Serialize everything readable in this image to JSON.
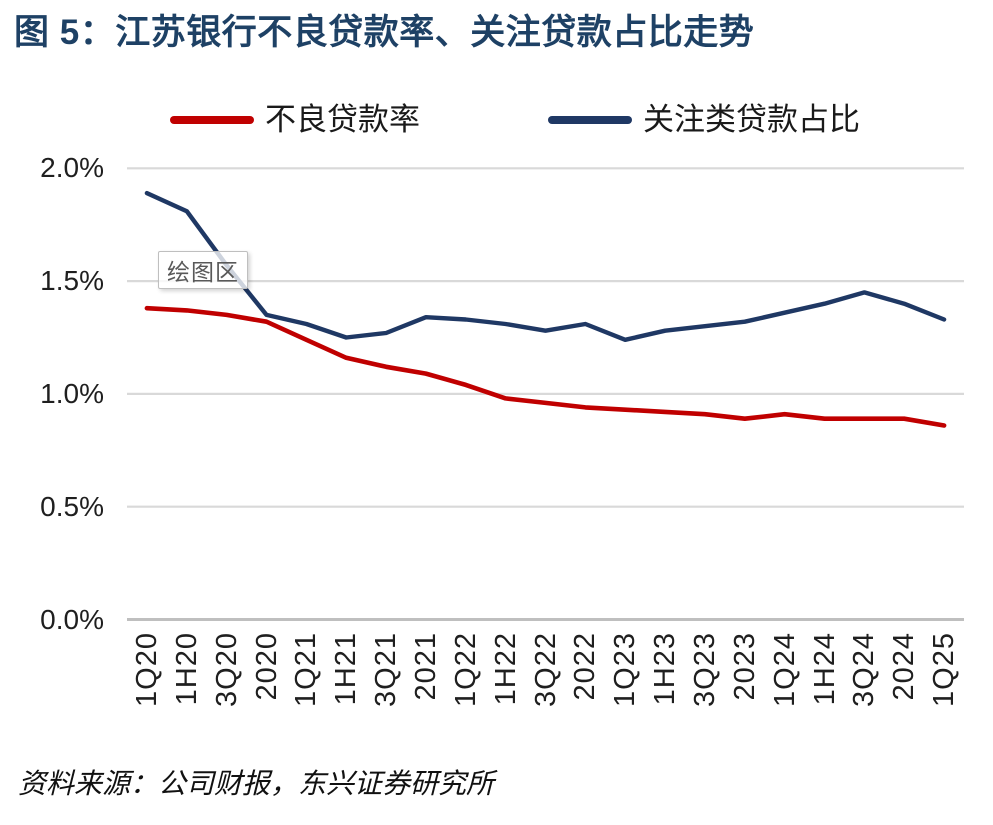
{
  "figure": {
    "title": "图 5：江苏银行不良贷款率、关注贷款占比走势",
    "plot_area_tooltip": "绘图区",
    "source": "资料来源：公司财报，东兴证券研究所"
  },
  "colors": {
    "title_blue": "#1E4165",
    "npl_red": "#C00000",
    "special_mention_navy": "#1F3864",
    "gridline_grey": "#D9D9D9",
    "axis_grey": "#BFBFBF",
    "tick_text": "#1f1f1f",
    "tooltip_text_grey": "#595959"
  },
  "chart_data": {
    "type": "line",
    "title": "江苏银行不良贷款率、关注贷款占比走势",
    "categories": [
      "1Q20",
      "1H20",
      "3Q20",
      "2020",
      "1Q21",
      "1H21",
      "3Q21",
      "2021",
      "1Q22",
      "1H22",
      "3Q22",
      "2022",
      "1Q23",
      "1H23",
      "3Q23",
      "2023",
      "1Q24",
      "1H24",
      "3Q24",
      "2024",
      "1Q25"
    ],
    "series": [
      {
        "name": "不良贷款率",
        "color": "#C00000",
        "values": [
          1.38,
          1.37,
          1.35,
          1.32,
          1.24,
          1.16,
          1.12,
          1.09,
          1.04,
          0.98,
          0.96,
          0.94,
          0.93,
          0.92,
          0.91,
          0.89,
          0.91,
          0.89,
          0.89,
          0.89,
          0.86
        ]
      },
      {
        "name": "关注类贷款占比",
        "color": "#1F3864",
        "values": [
          1.89,
          1.81,
          1.57,
          1.35,
          1.31,
          1.25,
          1.27,
          1.34,
          1.33,
          1.31,
          1.28,
          1.31,
          1.24,
          1.28,
          1.3,
          1.32,
          1.36,
          1.4,
          1.45,
          1.4,
          1.33
        ]
      }
    ],
    "unit": "%",
    "ylim": [
      0,
      2.0
    ],
    "yticks": [
      {
        "value": 0,
        "label": "0.0%"
      },
      {
        "value": 0.5,
        "label": "0.5%"
      },
      {
        "value": 1,
        "label": "1.0%"
      },
      {
        "value": 1.5,
        "label": "1.5%"
      },
      {
        "value": 2,
        "label": "2.0%"
      }
    ],
    "grid": true,
    "legend_position": "top-center"
  }
}
